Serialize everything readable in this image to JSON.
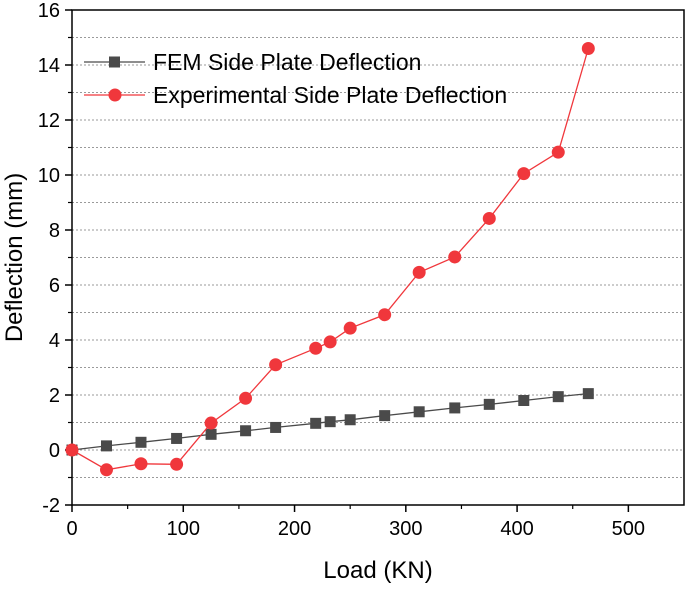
{
  "chart_data": {
    "type": "line",
    "title": "",
    "xlabel": "Load (KN)",
    "ylabel": "Deflection (mm)",
    "xlim": [
      0,
      550
    ],
    "ylim": [
      -2,
      16
    ],
    "x_ticks": [
      0,
      100,
      200,
      300,
      400,
      500
    ],
    "y_ticks": [
      -2,
      0,
      2,
      4,
      6,
      8,
      10,
      12,
      14,
      16
    ],
    "grid": "horizontal dashed at every 1 mm",
    "legend_position": "top-left",
    "series": [
      {
        "name": "FEM Side Plate Deflection",
        "color": "#4a4a4a",
        "marker": "square",
        "x": [
          0,
          31,
          62,
          94,
          125,
          156,
          183,
          219,
          232,
          250,
          281,
          312,
          344,
          375,
          406,
          437,
          464
        ],
        "y": [
          0,
          0.15,
          0.28,
          0.42,
          0.57,
          0.7,
          0.82,
          0.97,
          1.03,
          1.1,
          1.25,
          1.39,
          1.53,
          1.66,
          1.8,
          1.94,
          2.05
        ]
      },
      {
        "name": "Experimental Side Plate Deflection",
        "color": "#f0373c",
        "marker": "circle",
        "x": [
          0,
          31,
          62,
          94,
          125,
          156,
          183,
          219,
          232,
          250,
          281,
          312,
          344,
          375,
          406,
          437,
          464
        ],
        "y": [
          0,
          -0.72,
          -0.5,
          -0.52,
          0.98,
          1.88,
          3.1,
          3.7,
          3.93,
          4.43,
          4.92,
          6.46,
          7.02,
          8.42,
          10.05,
          10.83,
          14.6
        ]
      }
    ]
  }
}
